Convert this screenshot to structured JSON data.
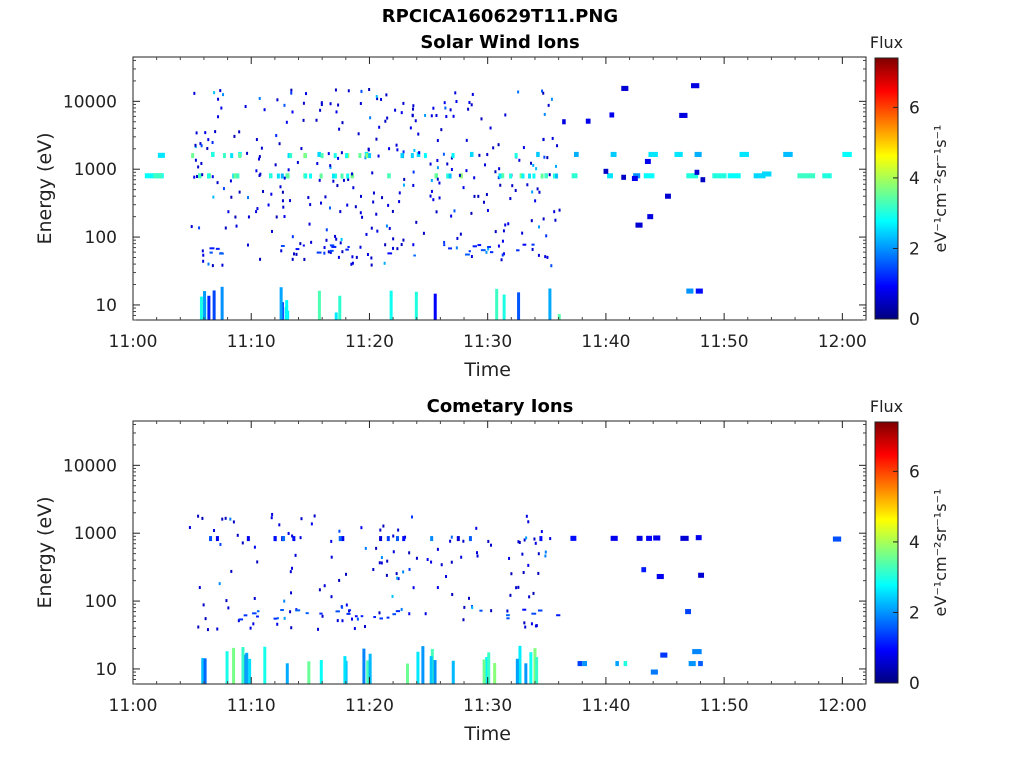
{
  "figure": {
    "title": "RPCICA160629T11.PNG"
  },
  "chart_data": [
    {
      "type": "heatmap",
      "title": "Solar Wind Ions",
      "xlabel": "Time",
      "ylabel": "Energy (eV)",
      "x_ticks": [
        "11:00",
        "11:10",
        "11:20",
        "11:30",
        "11:40",
        "11:50",
        "12:00"
      ],
      "x_range_minutes": [
        0,
        62
      ],
      "y_ticks": [
        "10",
        "100",
        "1000",
        "10000"
      ],
      "y_scale": "log",
      "y_range": [
        6,
        45000
      ],
      "colorbar": {
        "label": "Flux",
        "units": "eV⁻¹cm⁻²sr⁻¹s⁻¹",
        "ticks": [
          "0",
          "2",
          "4",
          "6"
        ],
        "range": [
          0,
          7.4
        ]
      },
      "cells": [
        [
          1.0,
          800,
          2.8,
          1.6
        ],
        [
          1.7,
          800,
          3.2,
          0.8
        ],
        [
          2.1,
          1600,
          2.6,
          0.6
        ],
        [
          5.5,
          800,
          3.3,
          0.3
        ],
        [
          6.3,
          800,
          3.5,
          0.3
        ],
        [
          6.6,
          1650,
          3.0,
          0.3
        ],
        [
          8.6,
          800,
          3.5,
          0.3
        ],
        [
          8.9,
          1650,
          2.8,
          0.3
        ],
        [
          11.5,
          800,
          3.0,
          0.3
        ],
        [
          12.9,
          800,
          3.3,
          0.3
        ],
        [
          14.4,
          800,
          3.5,
          0.3
        ],
        [
          15.6,
          1650,
          2.5,
          0.3
        ],
        [
          18.4,
          800,
          3.6,
          0.3
        ],
        [
          19.6,
          1650,
          2.6,
          0.3
        ],
        [
          21.5,
          800,
          3.3,
          0.3
        ],
        [
          24.0,
          1650,
          2.5,
          0.3
        ],
        [
          25.5,
          800,
          3.5,
          0.3
        ],
        [
          27.6,
          800,
          3.8,
          0.3
        ],
        [
          28.5,
          1650,
          2.5,
          0.3
        ],
        [
          31.1,
          800,
          3.4,
          0.3
        ],
        [
          32.7,
          800,
          3.6,
          0.3
        ],
        [
          34.1,
          1650,
          2.4,
          0.3
        ],
        [
          34.8,
          800,
          3.2,
          0.3
        ],
        [
          37.1,
          800,
          3.1,
          0.5
        ],
        [
          37.3,
          1650,
          2.2,
          0.4
        ],
        [
          40.1,
          800,
          2.6,
          0.5
        ],
        [
          40.4,
          1650,
          2.4,
          0.5
        ],
        [
          42.3,
          800,
          2.0,
          0.6
        ],
        [
          43.2,
          800,
          2.8,
          0.9
        ],
        [
          43.6,
          1650,
          2.6,
          0.8
        ],
        [
          45.8,
          1650,
          2.6,
          0.7
        ],
        [
          46.8,
          800,
          3.0,
          1.0
        ],
        [
          47.5,
          1650,
          2.2,
          0.6
        ],
        [
          49.0,
          800,
          3.0,
          1.2
        ],
        [
          50.3,
          800,
          2.8,
          1.1
        ],
        [
          51.3,
          1650,
          2.6,
          0.8
        ],
        [
          52.5,
          800,
          2.5,
          1.0
        ],
        [
          53.2,
          850,
          2.5,
          0.8
        ],
        [
          55.0,
          1650,
          2.3,
          0.8
        ],
        [
          56.2,
          800,
          3.2,
          1.5
        ],
        [
          58.3,
          800,
          3.0,
          0.8
        ],
        [
          60.0,
          1650,
          2.8,
          0.8
        ],
        [
          46.8,
          16,
          2.0,
          0.6
        ],
        [
          47.6,
          16,
          1.0,
          0.6
        ],
        [
          42.2,
          730,
          0.8,
          0.5
        ],
        [
          46.2,
          6200,
          0.7,
          0.7
        ],
        [
          47.2,
          17000,
          0.7,
          0.7
        ],
        [
          47.5,
          900,
          0.6,
          0.4
        ],
        [
          48.0,
          700,
          0.5,
          0.4
        ],
        [
          43.3,
          1300,
          0.8,
          0.5
        ],
        [
          36.3,
          5000,
          0.7,
          0.3
        ],
        [
          38.3,
          5100,
          0.8,
          0.4
        ],
        [
          40.3,
          6300,
          0.8,
          0.4
        ],
        [
          41.3,
          15500,
          0.6,
          0.6
        ],
        [
          45.0,
          400,
          0.6,
          0.5
        ],
        [
          42.5,
          150,
          0.6,
          0.6
        ],
        [
          43.5,
          200,
          0.7,
          0.5
        ],
        [
          39.8,
          930,
          0.5,
          0.4
        ],
        [
          41.3,
          760,
          0.5,
          0.4
        ]
      ]
    },
    {
      "type": "heatmap",
      "title": "Cometary Ions",
      "xlabel": "Time",
      "ylabel": "Energy (eV)",
      "x_ticks": [
        "11:00",
        "11:10",
        "11:20",
        "11:30",
        "11:40",
        "11:50",
        "12:00"
      ],
      "x_range_minutes": [
        0,
        62
      ],
      "y_ticks": [
        "10",
        "100",
        "1000",
        "10000"
      ],
      "y_scale": "log",
      "y_range": [
        6,
        45000
      ],
      "colorbar": {
        "label": "Flux",
        "units": "eV⁻¹cm⁻²sr⁻¹s⁻¹",
        "ticks": [
          "0",
          "2",
          "4",
          "6"
        ],
        "range": [
          0,
          7.4
        ]
      },
      "cells": [
        [
          37.6,
          12,
          1.4,
          0.4
        ],
        [
          38.0,
          12,
          2.0,
          0.4
        ],
        [
          40.8,
          12,
          2.1,
          0.3
        ],
        [
          41.5,
          12,
          3.0,
          0.3
        ],
        [
          43.8,
          9,
          1.8,
          0.6
        ],
        [
          44.6,
          16,
          1.3,
          0.6
        ],
        [
          47.0,
          12,
          2.0,
          0.6
        ],
        [
          47.8,
          12,
          1.6,
          0.4
        ],
        [
          47.3,
          18,
          1.9,
          0.8
        ],
        [
          37.0,
          840,
          1.0,
          0.5
        ],
        [
          40.4,
          840,
          0.8,
          0.6
        ],
        [
          42.6,
          840,
          0.7,
          0.5
        ],
        [
          43.4,
          840,
          0.9,
          0.5
        ],
        [
          44.0,
          850,
          0.8,
          0.6
        ],
        [
          46.3,
          840,
          0.6,
          0.7
        ],
        [
          47.6,
          860,
          0.8,
          0.5
        ],
        [
          59.2,
          820,
          1.5,
          0.7
        ],
        [
          44.3,
          230,
          0.8,
          0.6
        ],
        [
          47.8,
          240,
          0.6,
          0.5
        ],
        [
          46.7,
          70,
          1.4,
          0.5
        ],
        [
          43.0,
          290,
          1.1,
          0.4
        ]
      ]
    }
  ]
}
